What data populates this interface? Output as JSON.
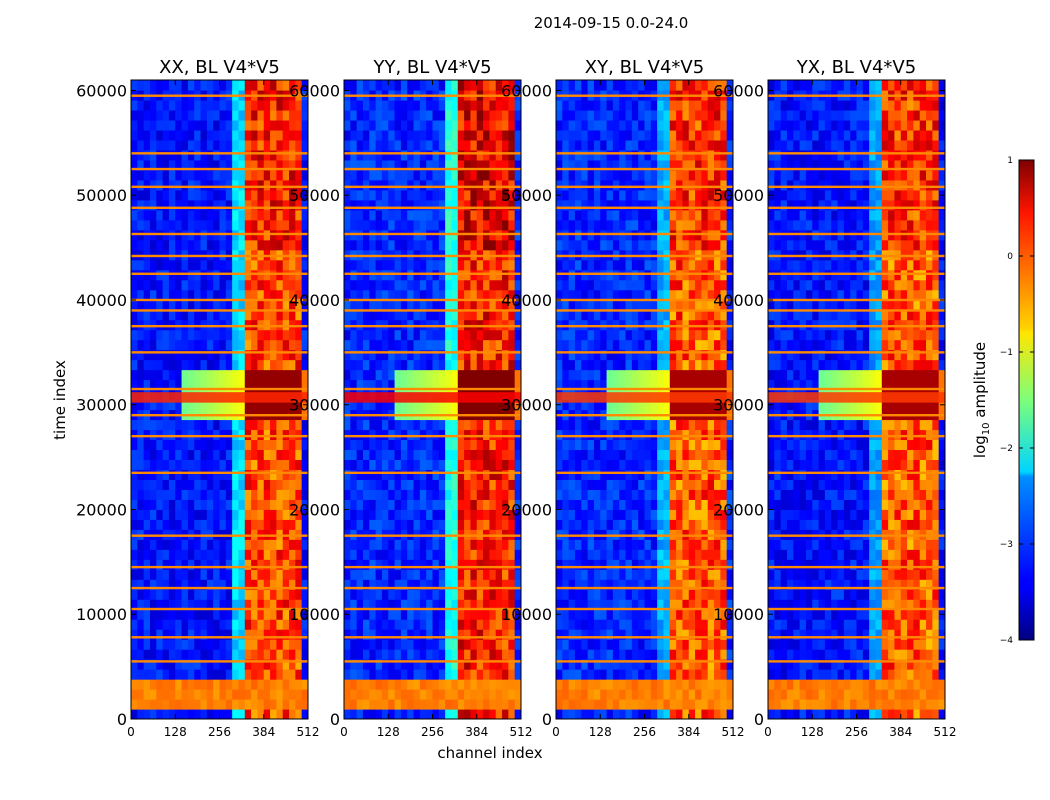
{
  "chart_data": {
    "type": "heatmap",
    "title": "2014-09-15 0.0-24.0",
    "xlabel": "channel index",
    "ylabel": "time index",
    "xlim": [
      0,
      512
    ],
    "ylim": [
      0,
      61000
    ],
    "x_ticks": [
      0,
      128,
      256,
      384,
      512
    ],
    "x_tick_labels": [
      "0",
      "128",
      "256",
      "384",
      "512"
    ],
    "y_ticks": [
      0,
      10000,
      20000,
      30000,
      40000,
      50000,
      60000
    ],
    "y_tick_labels": [
      "0",
      "10000",
      "20000",
      "30000",
      "40000",
      "50000",
      "60000"
    ],
    "colorbar": {
      "label_main": "log",
      "label_sub": "10",
      "label_tail": " amplitude",
      "range": [
        -4,
        1
      ],
      "ticks": [
        1,
        0,
        -1,
        -2,
        -3,
        -4
      ],
      "tick_labels": [
        "1",
        "0",
        "−1",
        "−2",
        "−3",
        "−4"
      ],
      "colormap": "jet"
    },
    "panels": [
      {
        "name": "XX",
        "title": "XX, BL V4*V5",
        "base_level": -3.3,
        "wing_level": -2.3,
        "rfi_level": 0.4
      },
      {
        "name": "YY",
        "title": "YY, BL V4*V5",
        "base_level": -3.2,
        "wing_level": -2.0,
        "rfi_level": 0.6
      },
      {
        "name": "XY",
        "title": "XY, BL V4*V5",
        "base_level": -3.2,
        "wing_level": -2.5,
        "rfi_level": 0.3
      },
      {
        "name": "YX",
        "title": "YX, BL V4*V5",
        "base_level": -3.3,
        "wing_level": -2.6,
        "rfi_level": 0.3
      }
    ],
    "rfi_channel_range": [
      325,
      500
    ],
    "strong_rfi_time_range": [
      28500,
      33500
    ],
    "flagged_time_block": [
      500,
      4200
    ],
    "flag_rows_time": [
      5500,
      7800,
      10500,
      12500,
      14500,
      17500,
      23500,
      27000,
      29000,
      31500,
      35000,
      37500,
      39000,
      40000,
      42500,
      44200,
      46300,
      48800,
      50800,
      52500,
      54000,
      59500
    ]
  }
}
